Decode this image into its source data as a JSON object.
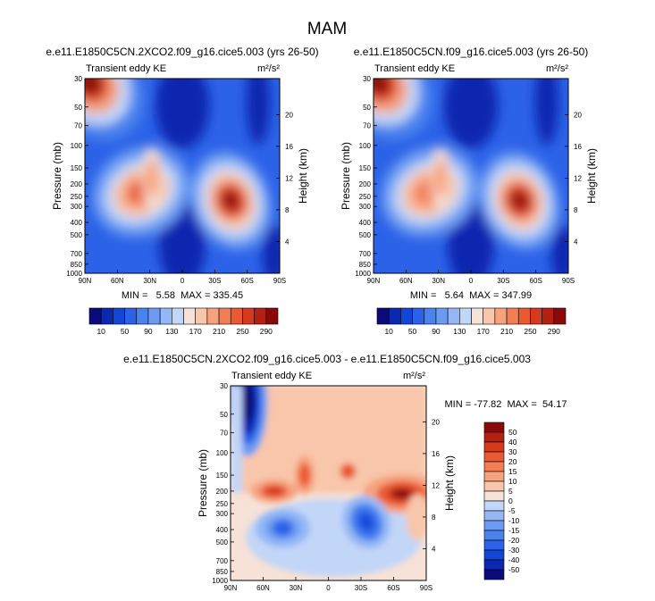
{
  "page_title": "MAM",
  "panels": [
    {
      "title": "e.e11.E1850C5CN.2XCO2.f09_g16.cice5.003 (yrs 26-50)",
      "left_label": "Transient eddy KE",
      "units": "m²/s²",
      "min_max_text": "MIN =   5.58  MAX = 335.45"
    },
    {
      "title": "e.e11.E1850C5CN.f09_g16.cice5.003 (yrs 26-50)",
      "left_label": "Transient eddy KE",
      "units": "m²/s²",
      "min_max_text": "MIN =   5.64  MAX = 347.99"
    },
    {
      "title": "e.e11.E1850C5CN.2XCO2.f09_g16.cice5.003 - e.e11.E1850C5CN.f09_g16.cice5.003",
      "left_label": "Transient eddy KE",
      "units": "m²/s²",
      "min_max_text": "MIN = -77.82  MAX =  54.17"
    }
  ],
  "axes": {
    "ylabel": "Pressure (mb)",
    "ylabel_right": "Height (km)",
    "pressure_ticks": [
      "30",
      "50",
      "70",
      "100",
      "150",
      "200",
      "250",
      "300",
      "400",
      "500",
      "700",
      "850",
      "1000"
    ],
    "height_ticks": [
      "20",
      "16",
      "12",
      "8",
      "4"
    ],
    "lat_ticks": [
      "90N",
      "60N",
      "30N",
      "0",
      "30S",
      "60S",
      "90S"
    ],
    "lat_ticks_diff": [
      "90N",
      "60N",
      "30N",
      "0",
      "30S",
      "60S",
      "90S"
    ]
  },
  "colorbars": {
    "field_labels": [
      "10",
      "50",
      "90",
      "130",
      "170",
      "210",
      "250",
      "290"
    ],
    "diff_labels": [
      "50",
      "40",
      "30",
      "20",
      "15",
      "10",
      "5",
      "0",
      "-5",
      "-10",
      "-15",
      "-20",
      "-30",
      "-40",
      "-50"
    ]
  },
  "chart_data": [
    {
      "type": "heatmap",
      "title": "e.e11.E1850C5CN.2XCO2.f09_g16.cice5.003 (yrs 26-50)",
      "xlabel": "",
      "ylabel": "Pressure (mb)",
      "ylabel_right": "Height (km)",
      "x_range": [
        -90,
        90
      ],
      "y_range_mb": [
        30,
        1000
      ],
      "y_scale": "log",
      "levels": [
        10,
        30,
        50,
        70,
        90,
        110,
        130,
        150,
        170,
        190,
        210,
        230,
        250,
        270,
        290
      ],
      "min": 5.58,
      "max": 335.45,
      "features": [
        {
          "name": "NH jet max",
          "lat": 33,
          "pressure_mb": 230,
          "value": 230
        },
        {
          "name": "SH jet max",
          "lat": -45,
          "pressure_mb": 280,
          "value": 310
        },
        {
          "name": "NH polar strat max",
          "lat": 85,
          "pressure_mb": 35,
          "value": 290
        }
      ]
    },
    {
      "type": "heatmap",
      "title": "e.e11.E1850C5CN.f09_g16.cice5.003 (yrs 26-50)",
      "xlabel": "",
      "ylabel": "Pressure (mb)",
      "ylabel_right": "Height (km)",
      "x_range": [
        -90,
        90
      ],
      "y_range_mb": [
        30,
        1000
      ],
      "y_scale": "log",
      "levels": [
        10,
        30,
        50,
        70,
        90,
        110,
        130,
        150,
        170,
        190,
        210,
        230,
        250,
        270,
        290
      ],
      "min": 5.64,
      "max": 347.99,
      "features": [
        {
          "name": "NH jet max",
          "lat": 33,
          "pressure_mb": 230,
          "value": 210
        },
        {
          "name": "SH jet max",
          "lat": -45,
          "pressure_mb": 280,
          "value": 320
        },
        {
          "name": "NH polar strat max",
          "lat": 85,
          "pressure_mb": 35,
          "value": 340
        }
      ]
    },
    {
      "type": "heatmap",
      "title": "e.e11.E1850C5CN.2XCO2.f09_g16.cice5.003 - e.e11.E1850C5CN.f09_g16.cice5.003",
      "xlabel": "",
      "ylabel": "Pressure (mb)",
      "ylabel_right": "Height (km)",
      "x_range": [
        -90,
        90
      ],
      "y_range_mb": [
        30,
        1000
      ],
      "y_scale": "log",
      "levels": [
        -50,
        -40,
        -30,
        -20,
        -15,
        -10,
        -5,
        0,
        5,
        10,
        15,
        20,
        30,
        40,
        50
      ],
      "min": -77.82,
      "max": 54.17,
      "features": [
        {
          "name": "NH polar strat min",
          "lat": 72,
          "pressure_mb": 40,
          "value": -70
        },
        {
          "name": "SH upper jet increase",
          "lat": -65,
          "pressure_mb": 200,
          "value": 50
        },
        {
          "name": "NH upper jet increase",
          "lat": 50,
          "pressure_mb": 200,
          "value": 35
        },
        {
          "name": "NH lower jet decrease",
          "lat": 42,
          "pressure_mb": 400,
          "value": -25
        },
        {
          "name": "SH lower jet decrease",
          "lat": -35,
          "pressure_mb": 330,
          "value": -40
        }
      ]
    }
  ]
}
